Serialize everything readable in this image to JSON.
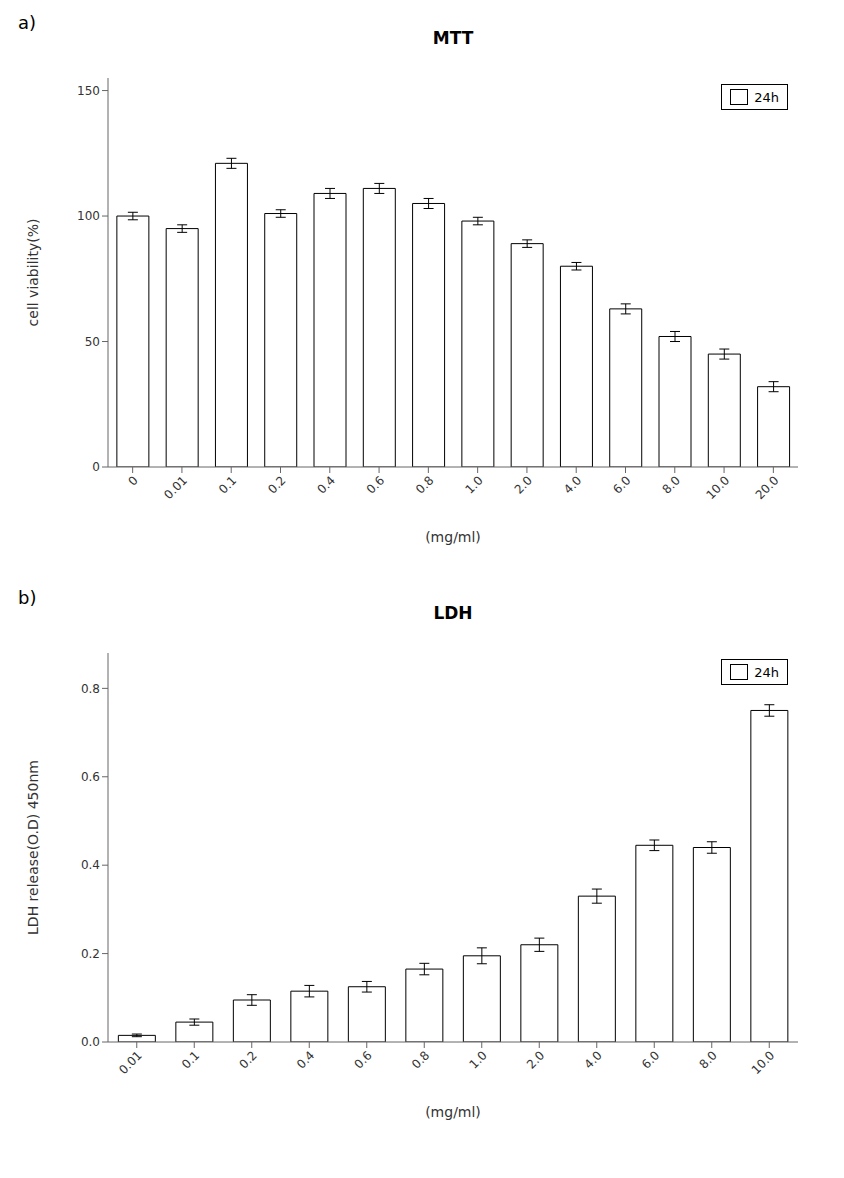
{
  "chart_data": [
    {
      "type": "bar",
      "title": "MTT",
      "annotations": [
        "a)"
      ],
      "categories": [
        "0",
        "0.01",
        "0.1",
        "0.2",
        "0.4",
        "0.6",
        "0.8",
        "1.0",
        "2.0",
        "4.0",
        "6.0",
        "8.0",
        "10.0",
        "20.0"
      ],
      "series": [
        {
          "name": "24h",
          "color": "#ffffff",
          "values": [
            100,
            95,
            121,
            101,
            109,
            111,
            105,
            98,
            89,
            80,
            63,
            52,
            45,
            32
          ],
          "errors": [
            1.5,
            1.5,
            2.0,
            1.5,
            2.0,
            2.0,
            2.0,
            1.5,
            1.5,
            1.5,
            2.0,
            2.0,
            2.0,
            2.0
          ]
        }
      ],
      "x_label": "(mg/ml)",
      "y_label": "cell viability(%)",
      "ylim": [
        0,
        155
      ],
      "yticks": [
        0,
        50,
        100,
        150
      ],
      "legend": "upper right",
      "grid": false
    },
    {
      "type": "bar",
      "title": "LDH",
      "annotations": [
        "b)"
      ],
      "categories": [
        "0.01",
        "0.1",
        "0.2",
        "0.4",
        "0.6",
        "0.8",
        "1.0",
        "2.0",
        "4.0",
        "6.0",
        "8.0",
        "10.0"
      ],
      "series": [
        {
          "name": "24h",
          "color": "#ffffff",
          "values": [
            0.015,
            0.045,
            0.095,
            0.115,
            0.125,
            0.165,
            0.195,
            0.22,
            0.33,
            0.445,
            0.44,
            0.75
          ],
          "errors": [
            0.003,
            0.007,
            0.012,
            0.013,
            0.012,
            0.013,
            0.018,
            0.015,
            0.016,
            0.012,
            0.013,
            0.013
          ]
        }
      ],
      "x_label": "(mg/ml)",
      "y_label": "LDH release(O.D) 450nm",
      "ylim": [
        0,
        0.88
      ],
      "yticks": [
        {
          "value": 0,
          "label": "0.0"
        },
        0.2,
        0.4,
        0.6,
        0.8
      ],
      "legend": "upper right",
      "grid": false
    }
  ]
}
